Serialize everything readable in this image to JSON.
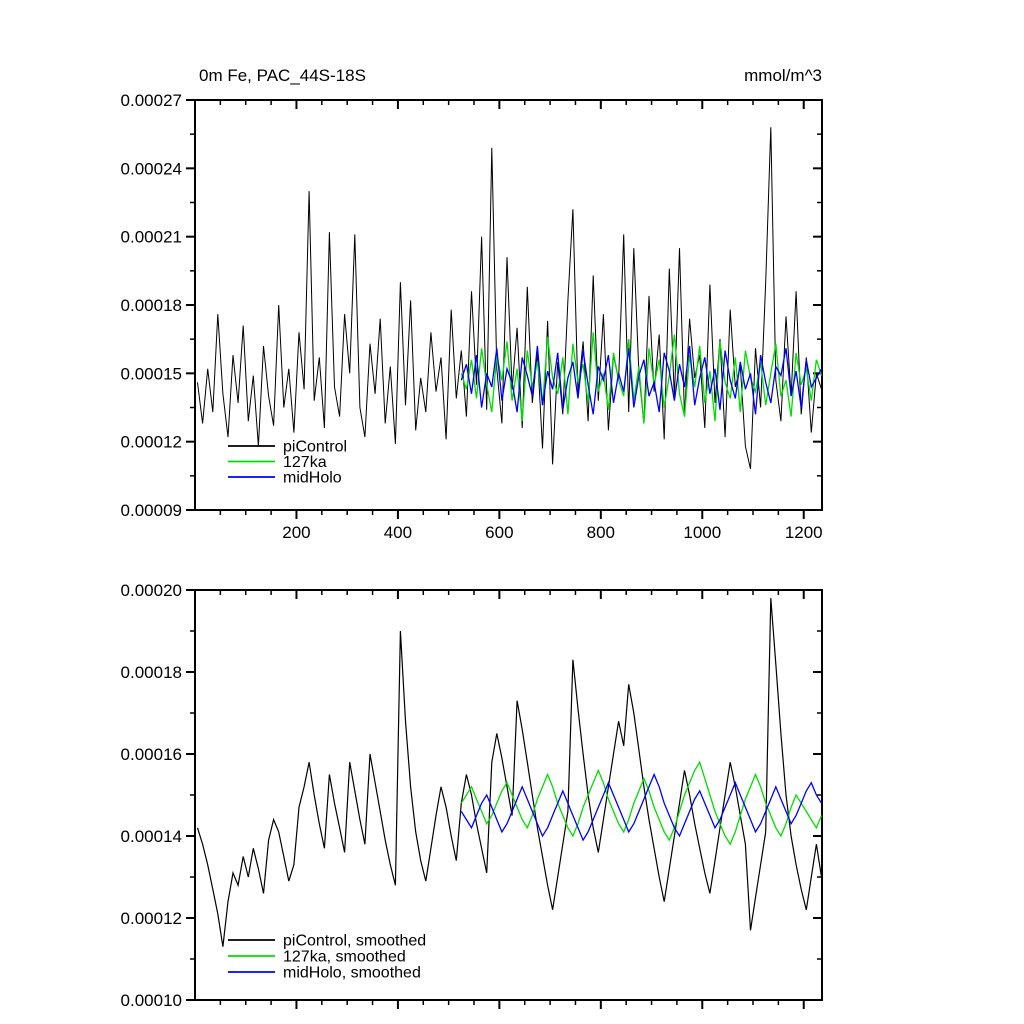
{
  "figure": {
    "background": "#ffffff"
  },
  "chart_data": [
    {
      "type": "line",
      "title": "0m Fe, PAC_44S-18S",
      "units_label": "mmol/m^3",
      "xlim": [
        0,
        1236
      ],
      "xticks": [
        200,
        400,
        600,
        800,
        1000,
        1200
      ],
      "x_minor_step": 50,
      "show_x_tick_labels": true,
      "y_scale": 1e-06,
      "ytick_decimals": 5,
      "ylim": [
        90,
        270
      ],
      "yticks": [
        90,
        120,
        150,
        180,
        210,
        240,
        270
      ],
      "y_minor_step": 15,
      "legend": [
        {
          "label": "piControl",
          "color": "#000000"
        },
        {
          "label": "127ka",
          "color": "#00dd00"
        },
        {
          "label": "midHolo",
          "color": "#0000ff"
        }
      ],
      "series": [
        {
          "name": "piControl",
          "color": "#000000",
          "width": 1,
          "x_start": 5,
          "x_step": 10,
          "values": [
            146,
            128,
            152,
            133,
            176,
            141,
            122,
            158,
            137,
            171,
            129,
            149,
            118,
            162,
            140,
            127,
            180,
            135,
            152,
            124,
            168,
            143,
            230,
            138,
            157,
            126,
            212,
            144,
            131,
            176,
            150,
            211,
            135,
            122,
            163,
            141,
            174,
            128,
            153,
            119,
            190,
            136,
            182,
            125,
            148,
            133,
            168,
            142,
            157,
            121,
            178,
            139,
            160,
            131,
            186,
            145,
            210,
            134,
            249,
            152,
            128,
            201,
            143,
            170,
            126,
            188,
            137,
            159,
            117,
            173,
            110,
            155,
            132,
            182,
            222,
            141,
            164,
            129,
            193,
            138,
            176,
            125,
            158,
            147,
            211,
            133,
            205,
            150,
            128,
            184,
            142,
            167,
            121,
            196,
            139,
            205,
            131,
            174,
            148,
            158,
            126,
            189,
            137,
            165,
            122,
            178,
            144,
            153,
            118,
            108,
            161,
            135,
            190,
            258,
            147,
            129,
            175,
            140,
            186,
            132,
            157,
            124,
            150,
            143
          ]
        },
        {
          "name": "127ka",
          "color": "#00dd00",
          "width": 1.3,
          "x_start": 525,
          "x_step": 10,
          "values": [
            150,
            143,
            156,
            139,
            161,
            145,
            133,
            158,
            147,
            164,
            138,
            152,
            129,
            160,
            144,
            155,
            136,
            166,
            148,
            141,
            157,
            132,
            163,
            146,
            154,
            137,
            168,
            142,
            150,
            134,
            159,
            147,
            140,
            165,
            138,
            153,
            128,
            161,
            145,
            156,
            135,
            149,
            167,
            141,
            131,
            158,
            144,
            162,
            137,
            151,
            129,
            164,
            146,
            139,
            157,
            133,
            160,
            148,
            142,
            155,
            136,
            150,
            163,
            140,
            147,
            131,
            159,
            145,
            152,
            138,
            156,
            149
          ]
        },
        {
          "name": "midHolo",
          "color": "#0000ff",
          "width": 1.3,
          "x_start": 525,
          "x_step": 10,
          "values": [
            147,
            154,
            141,
            158,
            135,
            150,
            144,
            161,
            138,
            152,
            146,
            133,
            157,
            149,
            140,
            162,
            136,
            151,
            143,
            159,
            134,
            148,
            155,
            139,
            160,
            145,
            132,
            153,
            147,
            158,
            137,
            150,
            142,
            161,
            135,
            149,
            156,
            140,
            146,
            133,
            159,
            151,
            138,
            154,
            144,
            162,
            136,
            148,
            157,
            141,
            152,
            134,
            160,
            147,
            139,
            155,
            143,
            150,
            132,
            158,
            146,
            137,
            153,
            149,
            161,
            140,
            151,
            135,
            156,
            144,
            148,
            152
          ]
        }
      ]
    },
    {
      "type": "line",
      "title": "",
      "units_label": "",
      "xlim": [
        0,
        1236
      ],
      "xticks": [
        200,
        400,
        600,
        800,
        1000,
        1200
      ],
      "x_minor_step": 50,
      "show_x_tick_labels": false,
      "y_scale": 1e-06,
      "ytick_decimals": 5,
      "ylim": [
        100,
        200
      ],
      "yticks": [
        100,
        120,
        140,
        160,
        180,
        200
      ],
      "y_minor_step": 10,
      "legend": [
        {
          "label": "piControl, smoothed",
          "color": "#000000"
        },
        {
          "label": "127ka, smoothed",
          "color": "#00dd00"
        },
        {
          "label": "midHolo, smoothed",
          "color": "#0000ff"
        }
      ],
      "series": [
        {
          "name": "piControl-smoothed",
          "color": "#000000",
          "width": 1.2,
          "x_start": 5,
          "x_step": 10,
          "values": [
            142,
            138,
            133,
            127,
            121,
            113,
            124,
            131,
            128,
            135,
            130,
            137,
            132,
            126,
            139,
            144,
            141,
            135,
            129,
            133,
            147,
            152,
            158,
            150,
            143,
            137,
            155,
            148,
            142,
            136,
            158,
            151,
            144,
            138,
            160,
            153,
            146,
            139,
            133,
            128,
            190,
            168,
            152,
            141,
            134,
            129,
            137,
            145,
            152,
            147,
            140,
            134,
            148,
            155,
            150,
            143,
            137,
            131,
            158,
            165,
            159,
            152,
            145,
            173,
            166,
            158,
            150,
            142,
            135,
            128,
            122,
            130,
            138,
            146,
            183,
            171,
            160,
            150,
            142,
            136,
            144,
            152,
            160,
            168,
            162,
            177,
            170,
            161,
            152,
            144,
            137,
            130,
            124,
            132,
            140,
            148,
            156,
            150,
            143,
            137,
            131,
            126,
            134,
            142,
            150,
            158,
            152,
            145,
            138,
            117,
            125,
            133,
            141,
            198,
            182,
            165,
            150,
            140,
            133,
            127,
            122,
            130,
            138,
            130
          ]
        },
        {
          "name": "127ka-smoothed",
          "color": "#00dd00",
          "width": 1.3,
          "x_start": 525,
          "x_step": 10,
          "values": [
            148,
            150,
            152,
            149,
            146,
            143,
            145,
            148,
            151,
            153,
            150,
            147,
            144,
            142,
            145,
            149,
            152,
            155,
            152,
            148,
            145,
            142,
            140,
            143,
            147,
            150,
            153,
            156,
            153,
            149,
            146,
            143,
            141,
            144,
            148,
            151,
            154,
            151,
            147,
            144,
            141,
            139,
            142,
            146,
            150,
            153,
            156,
            158,
            154,
            150,
            146,
            143,
            140,
            138,
            141,
            145,
            149,
            152,
            155,
            152,
            148,
            145,
            142,
            140,
            143,
            147,
            150,
            148,
            146,
            144,
            142,
            145
          ]
        },
        {
          "name": "midHolo-smoothed",
          "color": "#0000ff",
          "width": 1.3,
          "x_start": 525,
          "x_step": 10,
          "values": [
            146,
            144,
            142,
            145,
            148,
            150,
            147,
            144,
            141,
            143,
            146,
            149,
            152,
            149,
            146,
            143,
            140,
            142,
            145,
            148,
            151,
            148,
            145,
            142,
            139,
            141,
            144,
            147,
            150,
            153,
            150,
            147,
            144,
            141,
            143,
            146,
            149,
            152,
            155,
            152,
            148,
            145,
            142,
            140,
            143,
            146,
            149,
            151,
            148,
            145,
            142,
            144,
            147,
            150,
            153,
            150,
            147,
            144,
            141,
            143,
            146,
            149,
            152,
            149,
            146,
            143,
            145,
            148,
            151,
            153,
            150,
            148
          ]
        }
      ]
    }
  ]
}
